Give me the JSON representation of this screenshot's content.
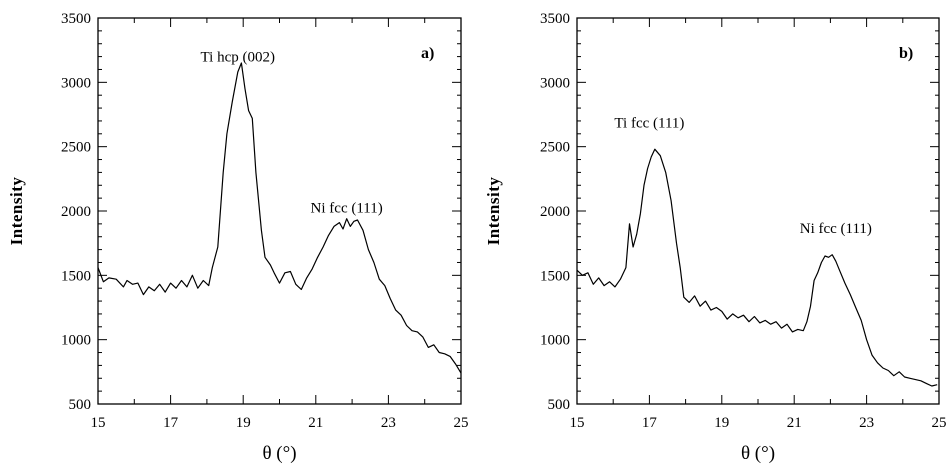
{
  "chart_data": [
    {
      "type": "line",
      "panel_label": "a)",
      "xlabel": "θ (°)",
      "ylabel": "Intensity",
      "xlim": [
        15,
        25
      ],
      "ylim": [
        500,
        3500
      ],
      "xticks": [
        "15",
        "17",
        "19",
        "21",
        "23",
        "25"
      ],
      "yticks": [
        "500",
        "1000",
        "1500",
        "2000",
        "2500",
        "3000",
        "3500"
      ],
      "annotations": [
        {
          "text": "Ti hcp (002)",
          "x": 18.85,
          "y": 3160
        },
        {
          "text": "Ni fcc (111)",
          "x": 21.85,
          "y": 1990
        }
      ],
      "series": [
        {
          "x": [
            15.0,
            15.15,
            15.3,
            15.5,
            15.7,
            15.8,
            15.95,
            16.1,
            16.25,
            16.4,
            16.55,
            16.7,
            16.85,
            17.0,
            17.15,
            17.3,
            17.45,
            17.6,
            17.75,
            17.9,
            18.05,
            18.15,
            18.3,
            18.45,
            18.55,
            18.7,
            18.85,
            18.95,
            19.05,
            19.15,
            19.25,
            19.35,
            19.5,
            19.6,
            19.75,
            19.85,
            20.0,
            20.15,
            20.3,
            20.45,
            20.6,
            20.75,
            20.9,
            21.05,
            21.2,
            21.35,
            21.5,
            21.65,
            21.75,
            21.85,
            21.95,
            22.05,
            22.15,
            22.3,
            22.45,
            22.6,
            22.75,
            22.9,
            23.05,
            23.2,
            23.35,
            23.5,
            23.65,
            23.8,
            23.95,
            24.1,
            24.25,
            24.4,
            24.55,
            24.7,
            24.85,
            25.0
          ],
          "values": [
            1560,
            1450,
            1480,
            1470,
            1410,
            1460,
            1430,
            1440,
            1350,
            1410,
            1380,
            1430,
            1370,
            1440,
            1400,
            1460,
            1410,
            1500,
            1400,
            1460,
            1420,
            1560,
            1720,
            2300,
            2600,
            2850,
            3080,
            3150,
            2950,
            2780,
            2720,
            2300,
            1850,
            1640,
            1580,
            1520,
            1440,
            1520,
            1530,
            1430,
            1390,
            1480,
            1550,
            1640,
            1720,
            1810,
            1880,
            1910,
            1860,
            1940,
            1880,
            1920,
            1930,
            1850,
            1700,
            1600,
            1470,
            1420,
            1320,
            1230,
            1190,
            1110,
            1070,
            1060,
            1020,
            940,
            960,
            900,
            890,
            870,
            810,
            740
          ]
        }
      ]
    },
    {
      "type": "line",
      "panel_label": "b)",
      "xlabel": "θ (°)",
      "ylabel": "Intensity",
      "xlim": [
        15,
        25
      ],
      "ylim": [
        500,
        3500
      ],
      "xticks": [
        "15",
        "17",
        "19",
        "21",
        "23",
        "25"
      ],
      "yticks": [
        "500",
        "1000",
        "1500",
        "2000",
        "2500",
        "3000",
        "3500"
      ],
      "annotations": [
        {
          "text": "Ti fcc (111)",
          "x": 17.0,
          "y": 2650
        },
        {
          "text": "Ni fcc (111)",
          "x": 22.15,
          "y": 1830
        }
      ],
      "series": [
        {
          "x": [
            15.0,
            15.15,
            15.3,
            15.45,
            15.6,
            15.75,
            15.9,
            16.05,
            16.2,
            16.35,
            16.45,
            16.55,
            16.65,
            16.75,
            16.85,
            16.95,
            17.05,
            17.15,
            17.3,
            17.45,
            17.6,
            17.75,
            17.85,
            17.95,
            18.1,
            18.25,
            18.4,
            18.55,
            18.7,
            18.85,
            19.0,
            19.15,
            19.3,
            19.45,
            19.6,
            19.75,
            19.9,
            20.05,
            20.2,
            20.35,
            20.5,
            20.65,
            20.8,
            20.95,
            21.1,
            21.25,
            21.35,
            21.45,
            21.55,
            21.65,
            21.75,
            21.85,
            21.95,
            22.05,
            22.15,
            22.25,
            22.4,
            22.55,
            22.7,
            22.85,
            23.0,
            23.15,
            23.3,
            23.45,
            23.6,
            23.75,
            23.9,
            24.05,
            24.2,
            24.35,
            24.5,
            24.65,
            24.8,
            24.95
          ],
          "values": [
            1540,
            1500,
            1520,
            1430,
            1480,
            1420,
            1450,
            1410,
            1470,
            1560,
            1900,
            1720,
            1820,
            1980,
            2200,
            2330,
            2420,
            2480,
            2430,
            2300,
            2080,
            1750,
            1560,
            1330,
            1290,
            1340,
            1260,
            1300,
            1230,
            1250,
            1220,
            1160,
            1200,
            1170,
            1190,
            1140,
            1180,
            1130,
            1150,
            1120,
            1140,
            1090,
            1120,
            1060,
            1080,
            1070,
            1140,
            1260,
            1460,
            1520,
            1600,
            1650,
            1640,
            1660,
            1610,
            1540,
            1440,
            1350,
            1250,
            1150,
            1000,
            880,
            820,
            780,
            760,
            720,
            750,
            710,
            700,
            690,
            680,
            660,
            640,
            650
          ]
        }
      ]
    }
  ]
}
